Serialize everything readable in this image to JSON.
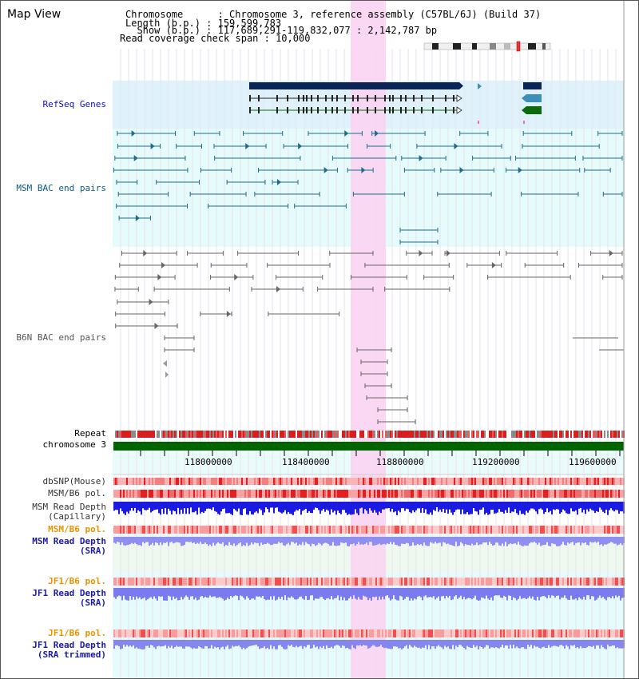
{
  "header": {
    "title": "Map View",
    "info_lines": [
      "Chromosome      : Chromosome 3, reference assembly (C57BL/6J) (Build 37)",
      "Length (b.p.) : 159,599,783",
      "  Show (b.p.) : 117,689,291-119,832,077 : 2,142,787 bp",
      "Read coverage check span : 10,000"
    ]
  },
  "tracks": {
    "refseq": "RefSeq Genes",
    "msm_bac": "MSM BAC end pairs",
    "b6n_bac": "B6N BAC end pairs",
    "repeat": "Repeat",
    "chromosome": "chromosome 3",
    "dbsnp": "dbSNP(Mouse)",
    "msm_b6_pol": "MSM/B6 pol.",
    "msm_read_depth_cap_1": "MSM Read Depth",
    "msm_read_depth_cap_2": "(Capillary)",
    "msm_b6_pol_sra": "MSM/B6 pol.",
    "msm_read_depth_sra_1": "MSM Read Depth",
    "msm_read_depth_sra_2": "(SRA)",
    "jf1_b6_pol_1": "JF1/B6 pol.",
    "jf1_read_depth_1": "JF1 Read Depth",
    "jf1_read_depth_1b": "(SRA)",
    "jf1_b6_pol_2": "JF1/B6 pol.",
    "jf1_read_depth_2": "JF1 Read Depth",
    "jf1_read_depth_2b": "(SRA trimmed)"
  },
  "axis": {
    "ticks": [
      "118000000",
      "118400000",
      "118800000",
      "119200000",
      "119600000"
    ]
  },
  "colors": {
    "refseq_bg": "#dff2fb",
    "msm_bg": "#e6fbfb",
    "highlight": "#f9d4f2",
    "msm_label": "#0a5a86",
    "refseq_label": "#1010c0",
    "orange_label": "#e59400",
    "blue_label": "#1a1aa8",
    "chromosome_bar": "#006400",
    "gene_navy": "#0a2456",
    "gene_teal": "#3c8fb5",
    "gene_green": "#0b6b0b",
    "msm_pair": "#1e6c8a",
    "b6n_pair": "#666666",
    "depth_blue": "#1a1ae0",
    "depth_light": "#7b7bef"
  }
}
